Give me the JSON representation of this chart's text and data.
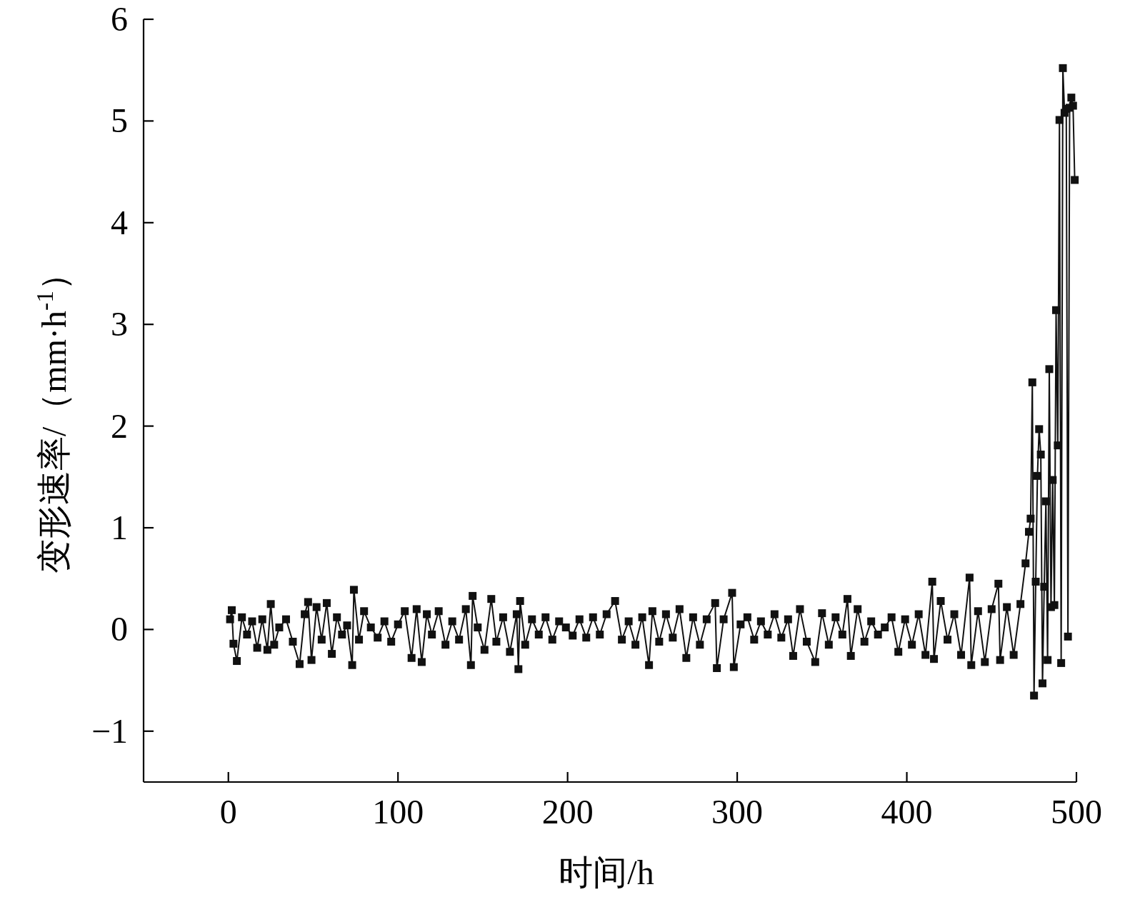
{
  "chart_data": {
    "type": "line",
    "xlabel": "时间/h",
    "ylabel": "变形速率/（mm·h$^{-1}$）",
    "xlim": [
      -50,
      500
    ],
    "ylim": [
      -1.5,
      6
    ],
    "xticks": [
      0,
      100,
      200,
      300,
      400,
      500
    ],
    "yticks": [
      {
        "value": -1,
        "label": "−1"
      },
      0,
      1,
      2,
      3,
      4,
      5,
      6
    ],
    "marker": "square",
    "line_style": "solid",
    "grid": false,
    "series": [
      {
        "color": "#111111",
        "x": [
          1,
          2,
          3,
          5,
          8,
          11,
          14,
          17,
          20,
          23,
          25,
          27,
          30,
          34,
          38,
          42,
          45,
          47,
          49,
          52,
          55,
          58,
          61,
          64,
          67,
          70,
          73,
          74,
          77,
          80,
          84,
          88,
          92,
          96,
          100,
          104,
          108,
          111,
          114,
          117,
          120,
          124,
          128,
          132,
          136,
          140,
          143,
          144,
          147,
          151,
          155,
          158,
          162,
          166,
          170,
          171,
          172,
          175,
          179,
          183,
          187,
          191,
          195,
          199,
          203,
          207,
          211,
          215,
          219,
          223,
          228,
          232,
          236,
          240,
          244,
          248,
          250,
          254,
          258,
          262,
          266,
          270,
          274,
          278,
          282,
          287,
          288,
          292,
          297,
          298,
          302,
          306,
          310,
          314,
          318,
          322,
          326,
          330,
          333,
          337,
          341,
          346,
          350,
          354,
          358,
          362,
          365,
          367,
          371,
          375,
          379,
          383,
          387,
          391,
          395,
          399,
          403,
          407,
          411,
          415,
          416,
          420,
          424,
          428,
          432,
          437,
          438,
          442,
          446,
          450,
          454,
          455,
          459,
          463,
          467,
          470,
          472,
          473,
          474,
          475,
          476,
          477,
          478,
          479,
          480,
          481,
          482,
          483,
          484,
          485,
          486,
          487,
          488,
          489,
          490,
          491,
          492,
          493,
          494,
          495,
          496,
          497,
          498,
          499
        ],
        "values": [
          0.1,
          0.19,
          -0.14,
          -0.31,
          0.12,
          -0.05,
          0.08,
          -0.18,
          0.1,
          -0.2,
          0.25,
          -0.15,
          0.02,
          0.1,
          -0.12,
          -0.34,
          0.15,
          0.27,
          -0.3,
          0.22,
          -0.1,
          0.26,
          -0.24,
          0.12,
          -0.05,
          0.04,
          -0.35,
          0.39,
          -0.1,
          0.18,
          0.02,
          -0.08,
          0.08,
          -0.12,
          0.05,
          0.18,
          -0.28,
          0.2,
          -0.32,
          0.15,
          -0.05,
          0.18,
          -0.15,
          0.08,
          -0.1,
          0.2,
          -0.35,
          0.33,
          0.02,
          -0.2,
          0.3,
          -0.12,
          0.12,
          -0.22,
          0.15,
          -0.39,
          0.28,
          -0.15,
          0.1,
          -0.05,
          0.12,
          -0.1,
          0.08,
          0.02,
          -0.06,
          0.1,
          -0.08,
          0.12,
          -0.05,
          0.15,
          0.28,
          -0.1,
          0.08,
          -0.15,
          0.12,
          -0.35,
          0.18,
          -0.12,
          0.15,
          -0.08,
          0.2,
          -0.28,
          0.12,
          -0.15,
          0.1,
          0.26,
          -0.38,
          0.1,
          0.36,
          -0.37,
          0.05,
          0.12,
          -0.1,
          0.08,
          -0.05,
          0.15,
          -0.08,
          0.1,
          -0.26,
          0.2,
          -0.12,
          -0.32,
          0.16,
          -0.15,
          0.12,
          -0.05,
          0.3,
          -0.26,
          0.2,
          -0.12,
          0.08,
          -0.05,
          0.02,
          0.12,
          -0.22,
          0.1,
          -0.15,
          0.15,
          -0.25,
          0.47,
          -0.29,
          0.28,
          -0.1,
          0.15,
          -0.25,
          0.51,
          -0.35,
          0.18,
          -0.32,
          0.2,
          0.45,
          -0.3,
          0.22,
          -0.25,
          0.25,
          0.65,
          0.96,
          1.09,
          2.43,
          -0.65,
          0.47,
          1.51,
          1.97,
          1.72,
          -0.53,
          0.42,
          1.26,
          -0.3,
          2.56,
          0.22,
          1.47,
          0.24,
          3.14,
          1.81,
          5.01,
          -0.33,
          5.52,
          5.08,
          5.12,
          -0.07,
          5.13,
          5.23,
          5.15,
          4.42
        ]
      }
    ]
  }
}
